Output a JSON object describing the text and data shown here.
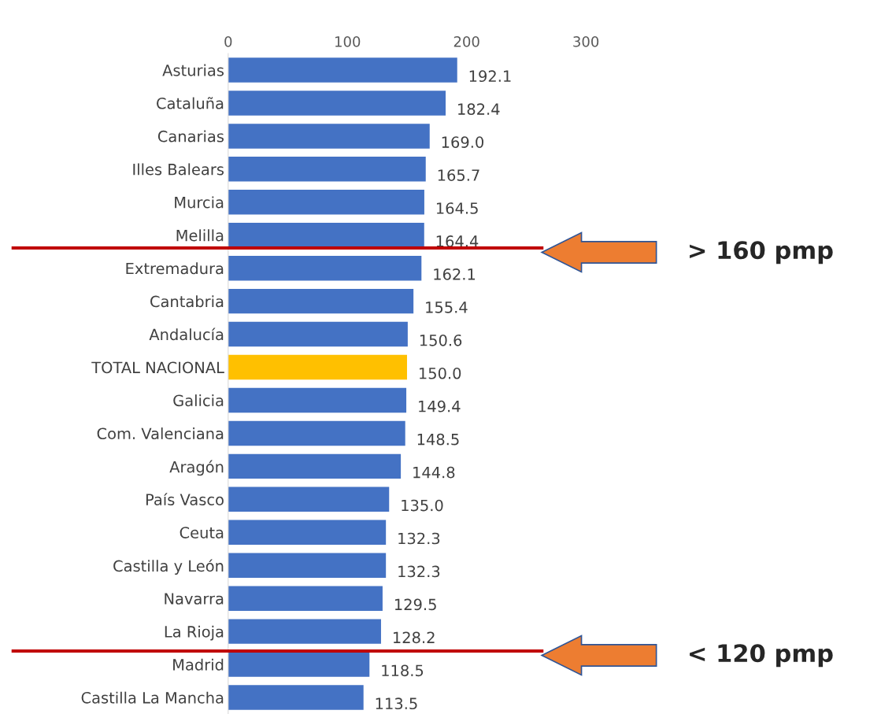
{
  "chart_data": {
    "type": "bar",
    "orientation": "horizontal",
    "categories": [
      "Asturias",
      "Cataluña",
      "Canarias",
      "Illes Balears",
      "Murcia",
      "Melilla",
      "Extremadura",
      "Cantabria",
      "Andalucía",
      "TOTAL NACIONAL",
      "Galicia",
      "Com. Valenciana",
      "Aragón",
      "País Vasco",
      "Ceuta",
      "Castilla y León",
      "Navarra",
      "La Rioja",
      "Madrid",
      "Castilla La Mancha"
    ],
    "values": [
      192.1,
      182.4,
      169.0,
      165.7,
      164.5,
      164.4,
      162.1,
      155.4,
      150.6,
      150.0,
      149.4,
      148.5,
      144.8,
      135.0,
      132.3,
      132.3,
      129.5,
      128.2,
      118.5,
      113.5
    ],
    "value_labels": [
      "192.1",
      "182.4",
      "169.0",
      "165.7",
      "164.5",
      "164.4",
      "162.1",
      "155.4",
      "150.6",
      "150.0",
      "149.4",
      "148.5",
      "144.8",
      "135.0",
      "132.3",
      "132.3",
      "129.5",
      "128.2",
      "118.5",
      "113.5"
    ],
    "colors": [
      "#4472c4",
      "#4472c4",
      "#4472c4",
      "#4472c4",
      "#4472c4",
      "#4472c4",
      "#4472c4",
      "#4472c4",
      "#4472c4",
      "#ffc000",
      "#4472c4",
      "#4472c4",
      "#4472c4",
      "#4472c4",
      "#4472c4",
      "#4472c4",
      "#4472c4",
      "#4472c4",
      "#4472c4",
      "#4472c4"
    ],
    "xlim": [
      0,
      300
    ],
    "xticks": [
      0,
      100,
      200,
      300
    ],
    "grid": false,
    "legend": false,
    "annotations": [
      "> 160 pmp",
      "< 120 pmp"
    ]
  }
}
